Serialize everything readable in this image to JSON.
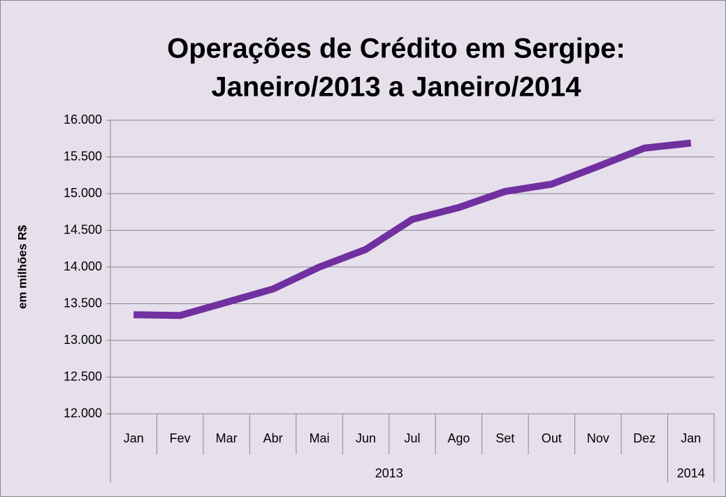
{
  "chart_data": {
    "type": "line",
    "title": [
      "Operações de Crédito em Sergipe:",
      "Janeiro/2013 a Janeiro/2014"
    ],
    "y_label": "em milhões R$",
    "categories": [
      "Jan",
      "Fev",
      "Mar",
      "Abr",
      "Mai",
      "Jun",
      "Jul",
      "Ago",
      "Set",
      "Out",
      "Nov",
      "Dez",
      "Jan"
    ],
    "groups": [
      {
        "label": "2013",
        "count": 12
      },
      {
        "label": "2014",
        "count": 1
      }
    ],
    "series": [
      {
        "color": "#7030a0",
        "values": [
          13350,
          13340,
          13520,
          13700,
          14000,
          14240,
          14650,
          14810,
          15030,
          15130,
          15370,
          15620,
          15690
        ]
      }
    ],
    "ylim": [
      12000,
      16000
    ],
    "yticks": [
      {
        "value": 12000,
        "label": "12.000"
      },
      {
        "value": 12500,
        "label": "12.500"
      },
      {
        "value": 13000,
        "label": "13.000"
      },
      {
        "value": 13500,
        "label": "13.500"
      },
      {
        "value": 14000,
        "label": "14.000"
      },
      {
        "value": 14500,
        "label": "14.500"
      },
      {
        "value": 15000,
        "label": "15.000"
      },
      {
        "value": 15500,
        "label": "15.500"
      },
      {
        "value": 16000,
        "label": "16.000"
      }
    ],
    "grid": true
  }
}
